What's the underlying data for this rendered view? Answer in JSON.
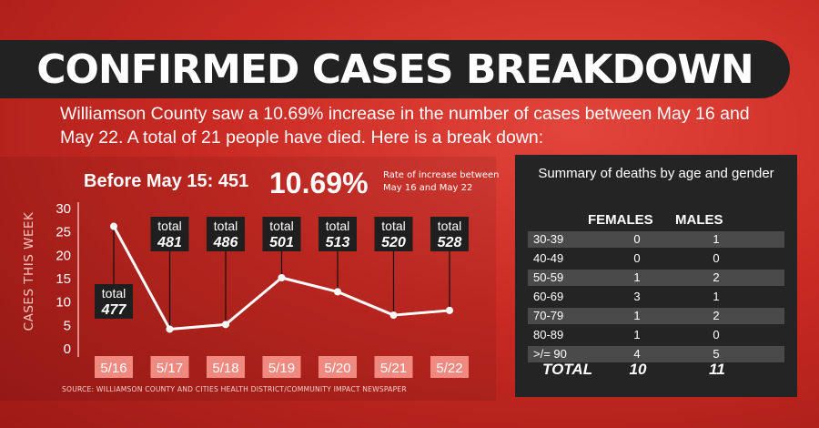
{
  "title": "CONFIRMED CASES BREAKDOWN",
  "intro": "Williamson County saw a 10.69% increase in the number of cases between May 16 and May 22. A total of 21 people have died. Here is a break down:",
  "summary": {
    "before": "Before May 15: 451",
    "percent": "10.69%",
    "rate_note": "Rate of increase between May 16 and May 22"
  },
  "source": "SOURCE: WILLIAMSON COUNTY AND CITIES HEALTH DISTRICT/COMMUNITY IMPACT NEWSPAPER",
  "colors": {
    "background": "#c92a23",
    "line": "#ffffff",
    "date_box": "#f08a80",
    "label_box": "#1f1f1f",
    "panel": "#242424"
  },
  "chart_data": {
    "type": "line",
    "ylabel": "CASES THIS WEEK",
    "ylim": [
      0,
      30
    ],
    "yticks": [
      0,
      5,
      10,
      15,
      20,
      25,
      30
    ],
    "categories": [
      "5/16",
      "5/17",
      "5/18",
      "5/19",
      "5/20",
      "5/21",
      "5/22"
    ],
    "values": [
      26,
      4,
      5,
      15,
      12,
      7,
      8
    ],
    "annotations": [
      {
        "label": "total",
        "value": "477"
      },
      {
        "label": "total",
        "value": "481"
      },
      {
        "label": "total",
        "value": "486"
      },
      {
        "label": "total",
        "value": "501"
      },
      {
        "label": "total",
        "value": "513"
      },
      {
        "label": "total",
        "value": "520"
      },
      {
        "label": "total",
        "value": "528"
      }
    ],
    "grid": false
  },
  "deaths": {
    "title": "Summary of deaths by age and gender",
    "headers": [
      "FEMALES",
      "MALES"
    ],
    "rows": [
      {
        "age": "30-39",
        "females": "0",
        "males": "1"
      },
      {
        "age": "40-49",
        "females": "0",
        "males": "0"
      },
      {
        "age": "50-59",
        "females": "1",
        "males": "2"
      },
      {
        "age": "60-69",
        "females": "3",
        "males": "1"
      },
      {
        "age": "70-79",
        "females": "1",
        "males": "2"
      },
      {
        "age": "80-89",
        "females": "1",
        "males": "0"
      },
      {
        "age": ">/= 90",
        "females": "4",
        "males": "5"
      }
    ],
    "total": {
      "label": "TOTAL",
      "females": "10",
      "males": "11"
    }
  }
}
